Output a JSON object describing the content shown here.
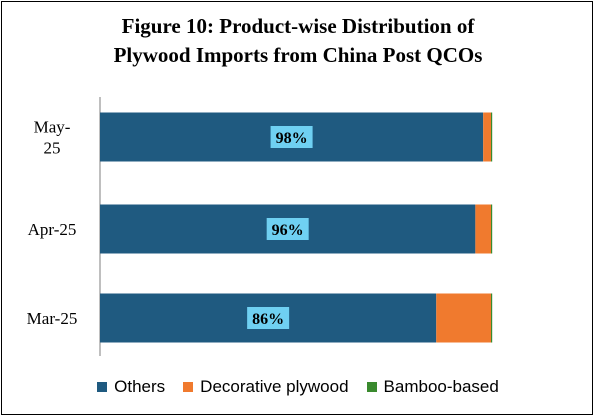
{
  "chart_data": {
    "type": "bar",
    "orientation": "horizontal",
    "stacked": true,
    "title_lines": [
      "Figure 10: Product-wise Distribution of",
      "Plywood Imports from China Post QCOs"
    ],
    "categories": [
      "May-25",
      "Apr-25",
      "Mar-25"
    ],
    "category_labels": [
      [
        "May-",
        "25"
      ],
      [
        "Apr-25"
      ],
      [
        "Mar-25"
      ]
    ],
    "series": [
      {
        "name": "Others",
        "color": "#1F5A80",
        "values": [
          98,
          96,
          86
        ],
        "data_labels": [
          "98%",
          "96%",
          "86%"
        ]
      },
      {
        "name": "Decorative plywood",
        "color": "#F07A2E",
        "values": [
          2,
          4,
          14
        ]
      },
      {
        "name": "Bamboo-based",
        "color": "#3A8A2E",
        "values": [
          0,
          0,
          0
        ]
      }
    ],
    "xlim": [
      0,
      100
    ],
    "legend_position": "bottom",
    "grid": false,
    "data_label_bg": "#6FD0F2"
  }
}
